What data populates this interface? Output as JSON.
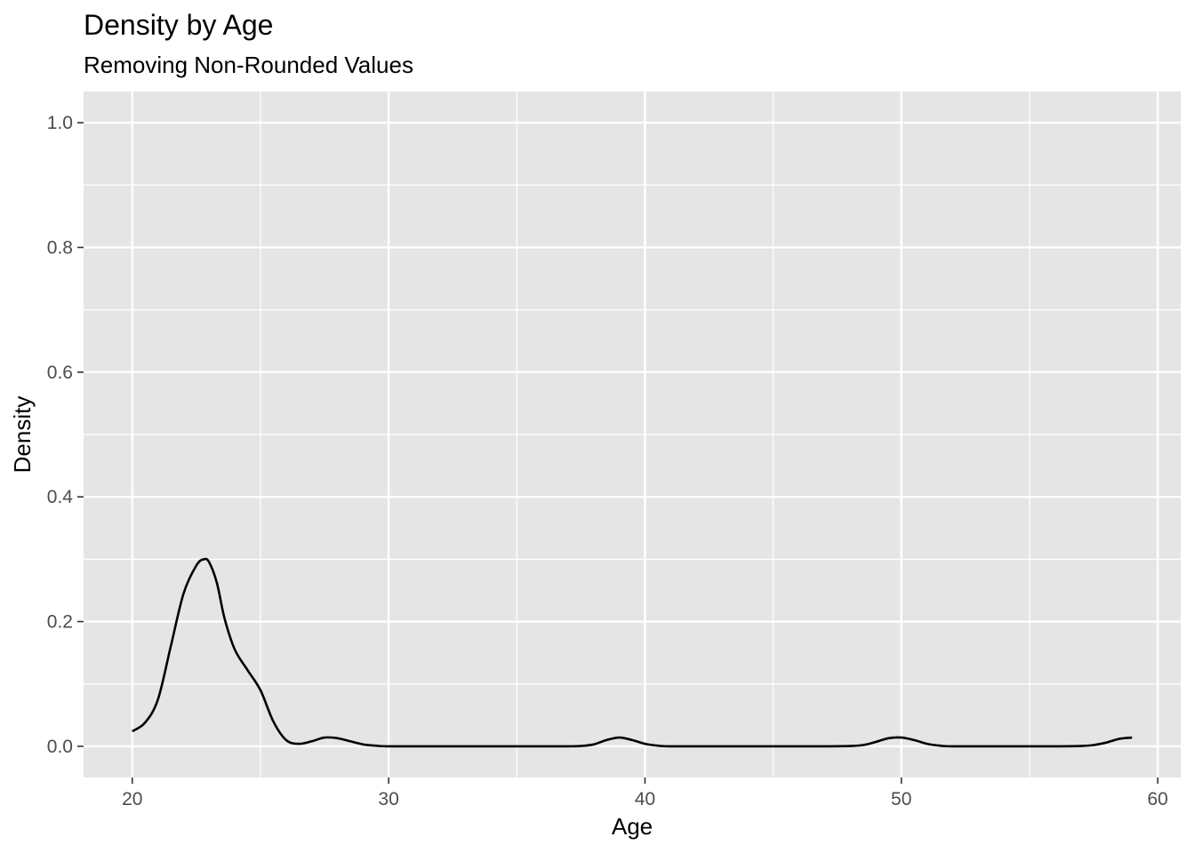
{
  "chart_data": {
    "type": "line",
    "title": "Density by Age",
    "subtitle": "Removing Non-Rounded Values",
    "xlabel": "Age",
    "ylabel": "Density",
    "xlim": [
      18.1,
      60.9
    ],
    "ylim": [
      -0.05,
      1.05
    ],
    "x_ticks": [
      20,
      30,
      40,
      50,
      60
    ],
    "x_tick_labels": [
      "20",
      "30",
      "40",
      "50",
      "60"
    ],
    "y_ticks": [
      0.0,
      0.2,
      0.4,
      0.6,
      0.8,
      1.0
    ],
    "y_tick_labels": [
      "0.0",
      "0.2",
      "0.4",
      "0.6",
      "0.8",
      "1.0"
    ],
    "grid": true,
    "colors": {
      "panel": "#e5e5e5",
      "grid": "#ffffff",
      "line": "#000000"
    },
    "series": [
      {
        "values_x": [
          20,
          20.5,
          21,
          21.5,
          22,
          22.5,
          22.8,
          23,
          23.3,
          23.6,
          24,
          24.5,
          25,
          25.5,
          26,
          26.5,
          27,
          27.5,
          28,
          28.5,
          29,
          29.5,
          30,
          32,
          34,
          36,
          37,
          37.5,
          38,
          38.5,
          39,
          39.5,
          40,
          40.5,
          41,
          43,
          45,
          47,
          48,
          48.5,
          49,
          49.5,
          50,
          50.5,
          51,
          51.5,
          52,
          54,
          56,
          57,
          57.5,
          58,
          58.5,
          59
        ],
        "values_y": [
          0.024,
          0.038,
          0.075,
          0.16,
          0.245,
          0.29,
          0.3,
          0.295,
          0.262,
          0.205,
          0.155,
          0.122,
          0.09,
          0.04,
          0.01,
          0.004,
          0.008,
          0.014,
          0.013,
          0.008,
          0.003,
          0.001,
          0.0,
          0.0,
          0.0,
          0.0,
          0.0,
          0.0005,
          0.003,
          0.01,
          0.014,
          0.01,
          0.004,
          0.001,
          0.0,
          0.0,
          0.0,
          0.0,
          0.0005,
          0.002,
          0.007,
          0.013,
          0.014,
          0.01,
          0.004,
          0.001,
          0.0,
          0.0,
          0.0,
          0.0005,
          0.002,
          0.006,
          0.012,
          0.014
        ]
      }
    ]
  }
}
